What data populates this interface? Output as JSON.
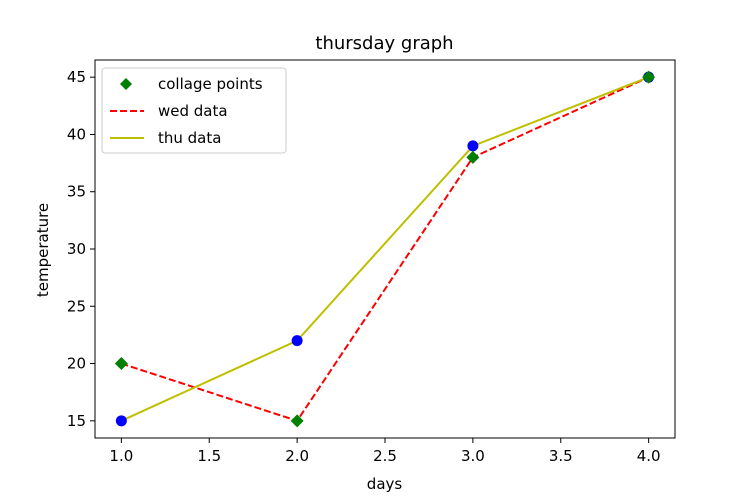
{
  "chart_data": {
    "type": "line",
    "title": "thursday graph",
    "xlabel": "days",
    "ylabel": "temperature",
    "xlim": [
      0.85,
      4.15
    ],
    "ylim": [
      13.5,
      46.5
    ],
    "x_ticks": [
      1.0,
      1.5,
      2.0,
      2.5,
      3.0,
      3.5,
      4.0
    ],
    "x_tick_labels": [
      "1.0",
      "1.5",
      "2.0",
      "2.5",
      "3.0",
      "3.5",
      "4.0"
    ],
    "y_ticks": [
      15,
      20,
      25,
      30,
      35,
      40,
      45
    ],
    "y_tick_labels": [
      "15",
      "20",
      "25",
      "30",
      "35",
      "40",
      "45"
    ],
    "grid": false,
    "legend_position": "upper-left",
    "series": [
      {
        "name": "collage points",
        "style": "marker",
        "marker": "diamond",
        "color": "#008000",
        "x": [
          1,
          2,
          3,
          4
        ],
        "y": [
          20,
          15,
          38,
          45
        ]
      },
      {
        "name": "wed data",
        "style": "dashed",
        "color": "#ff0000",
        "x": [
          1,
          2,
          3,
          4
        ],
        "y": [
          20,
          15,
          38,
          45
        ]
      },
      {
        "name": "thu data",
        "style": "solid",
        "color": "#bfbf00",
        "x": [
          1,
          2,
          3,
          4
        ],
        "y": [
          15,
          22,
          39,
          45
        ]
      },
      {
        "name": "",
        "style": "marker",
        "marker": "circle",
        "color": "#0000ff",
        "x": [
          1,
          2,
          3,
          4
        ],
        "y": [
          15,
          22,
          39,
          45
        ]
      }
    ]
  }
}
